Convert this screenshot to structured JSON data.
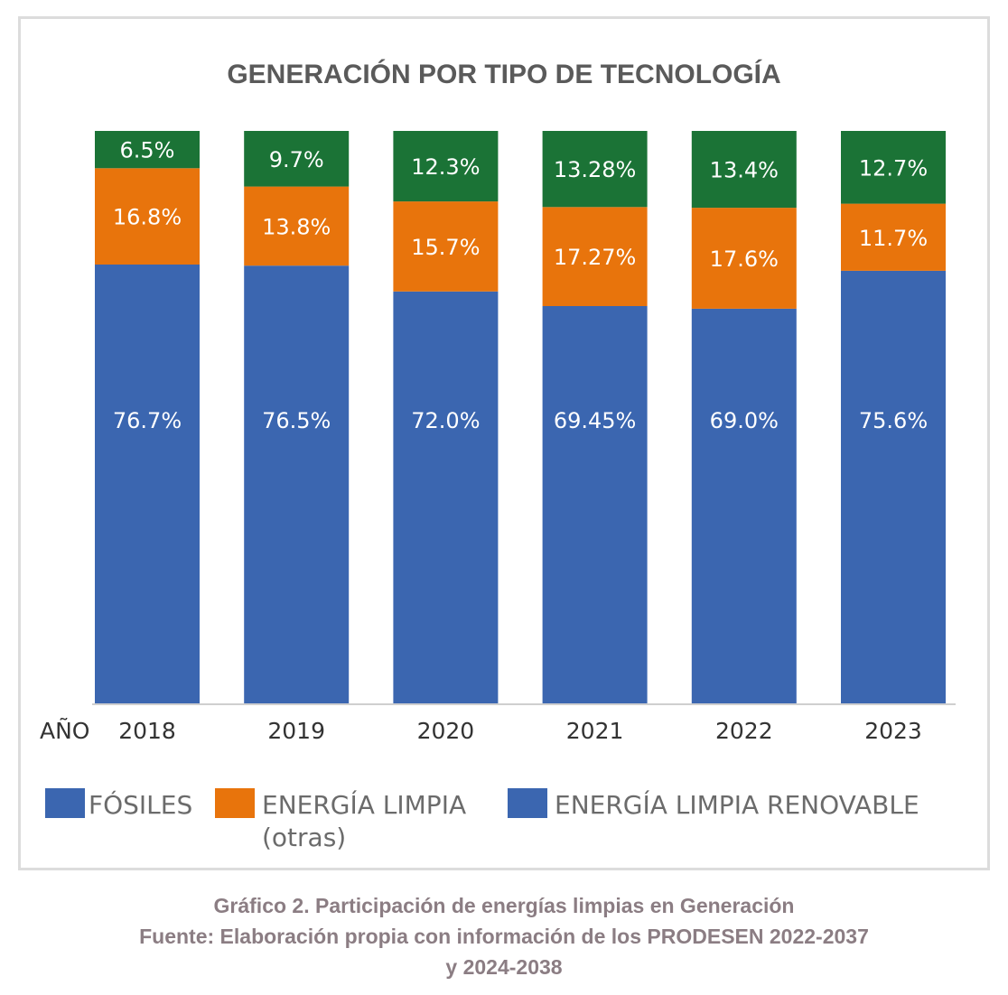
{
  "chart_data": {
    "type": "bar",
    "stacked": true,
    "title": "GENERACIÓN POR TIPO DE TECNOLOGÍA",
    "xlabel": "AÑO",
    "ylabel": "",
    "ylim": [
      0,
      100
    ],
    "categories": [
      "2018",
      "2019",
      "2020",
      "2021",
      "2022",
      "2023"
    ],
    "series": [
      {
        "name": "FÓSILES",
        "color": "#3b66b0",
        "values": [
          76.7,
          76.5,
          72.0,
          69.45,
          69.0,
          75.6
        ],
        "labels": [
          "76.7%",
          "76.5%",
          "72.0%",
          "69.45%",
          "69.0%",
          "75.6%"
        ]
      },
      {
        "name": "ENERGÍA LIMPIA",
        "name_line2": "(otras)",
        "color": "#e8740c",
        "values": [
          16.8,
          13.8,
          15.7,
          17.27,
          17.6,
          11.7
        ],
        "labels": [
          "16.8%",
          "13.8%",
          "15.7%",
          "17.27%",
          "17.6%",
          "11.7%"
        ]
      },
      {
        "name": "ENERGÍA LIMPIA RENOVABLE",
        "color": "#1b7336",
        "values": [
          6.5,
          9.7,
          12.3,
          13.28,
          13.4,
          12.7
        ],
        "labels": [
          "6.5%",
          "9.7%",
          "12.3%",
          "13.28%",
          "13.4%",
          "12.7%"
        ]
      }
    ],
    "legend_position": "bottom",
    "legend_swatch_colors": [
      "#3b66b0",
      "#e8740c",
      "#3b66b0"
    ]
  },
  "caption": {
    "line1": "Gráfico 2. Participación de energías limpias en Generación",
    "line2": "Fuente: Elaboración propia con información de los PRODESEN 2022-2037",
    "line3": "y 2024-2038"
  }
}
